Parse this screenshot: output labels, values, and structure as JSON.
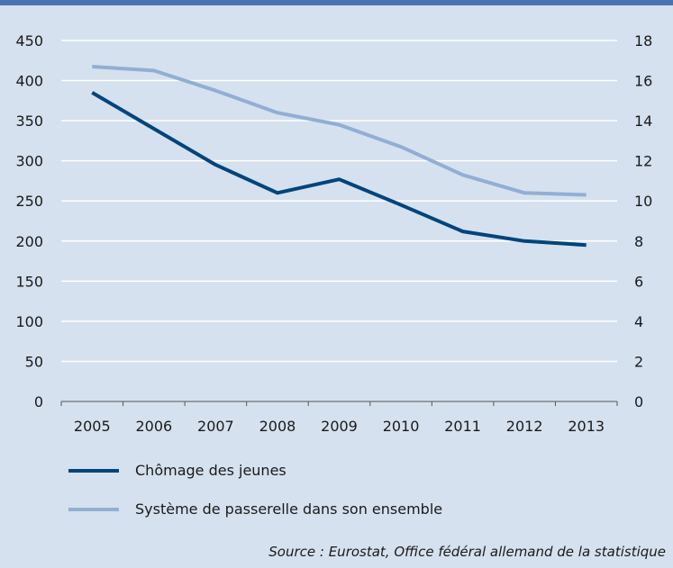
{
  "chart_data": {
    "type": "line",
    "categories": [
      "2005",
      "2006",
      "2007",
      "2008",
      "2009",
      "2010",
      "2011",
      "2012",
      "2013"
    ],
    "series": [
      {
        "name": "Chômage des jeunes",
        "axis": "left",
        "color": "#00457c",
        "values": [
          385,
          340,
          295,
          260,
          277,
          245,
          212,
          200,
          195
        ]
      },
      {
        "name": "Système de passerelle dans son ensemble",
        "axis": "right",
        "color": "#92aed4",
        "values": [
          16.7,
          16.5,
          15.5,
          14.4,
          13.8,
          12.7,
          11.3,
          10.4,
          10.3
        ]
      }
    ],
    "ylim_left": [
      0,
      450
    ],
    "ylim_right": [
      0,
      18
    ],
    "yticks_left": [
      "0",
      "50",
      "100",
      "150",
      "200",
      "250",
      "300",
      "350",
      "400",
      "450"
    ],
    "yticks_right": [
      "0",
      "2",
      "4",
      "6",
      "8",
      "10",
      "12",
      "14",
      "16",
      "18"
    ],
    "grid": true,
    "legend_position": "bottom-left"
  },
  "source": "Source : Eurostat, Office fédéral allemand de la statistique"
}
